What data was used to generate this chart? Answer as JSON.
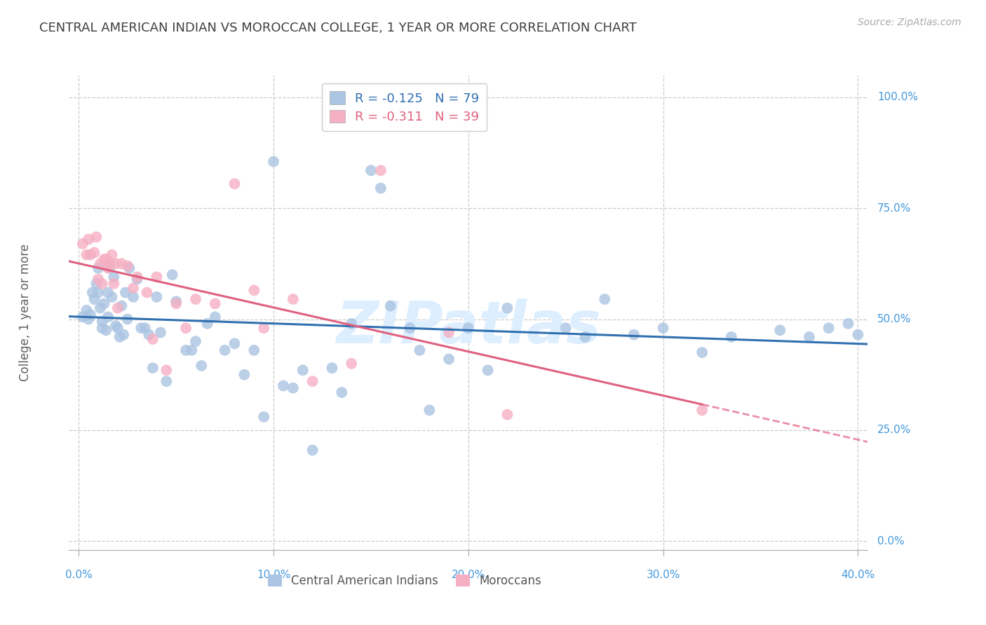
{
  "title": "CENTRAL AMERICAN INDIAN VS MOROCCAN COLLEGE, 1 YEAR OR MORE CORRELATION CHART",
  "source": "Source: ZipAtlas.com",
  "ylabel": "College, 1 year or more",
  "xlabel_ticks": [
    "0.0%",
    "10.0%",
    "20.0%",
    "30.0%",
    "40.0%"
  ],
  "xlabel_vals": [
    0.0,
    0.1,
    0.2,
    0.3,
    0.4
  ],
  "ylabel_ticks": [
    "0.0%",
    "25.0%",
    "50.0%",
    "75.0%",
    "100.0%"
  ],
  "ylabel_vals": [
    0.0,
    0.25,
    0.5,
    0.75,
    1.0
  ],
  "xlim": [
    -0.005,
    0.405
  ],
  "ylim": [
    -0.02,
    1.05
  ],
  "blue_R": -0.125,
  "blue_N": 79,
  "pink_R": -0.311,
  "pink_N": 39,
  "blue_color": "#aac4e2",
  "pink_color": "#f5afc3",
  "blue_line_color": "#3070b0",
  "pink_line_color": "#e06080",
  "background_color": "#ffffff",
  "grid_color": "#cccccc",
  "tick_color": "#4499dd",
  "title_color": "#404040",
  "ylabel_color": "#606060",
  "watermark": "ZIPatlas",
  "watermark_color": "#ddeeff",
  "blue_scatter_x": [
    0.002,
    0.004,
    0.005,
    0.006,
    0.007,
    0.008,
    0.009,
    0.01,
    0.01,
    0.011,
    0.012,
    0.012,
    0.013,
    0.014,
    0.015,
    0.015,
    0.016,
    0.017,
    0.018,
    0.019,
    0.02,
    0.021,
    0.022,
    0.023,
    0.024,
    0.025,
    0.026,
    0.028,
    0.03,
    0.032,
    0.034,
    0.036,
    0.038,
    0.04,
    0.042,
    0.045,
    0.048,
    0.05,
    0.055,
    0.058,
    0.06,
    0.063,
    0.066,
    0.07,
    0.075,
    0.08,
    0.085,
    0.09,
    0.095,
    0.1,
    0.105,
    0.11,
    0.115,
    0.12,
    0.13,
    0.135,
    0.14,
    0.15,
    0.155,
    0.16,
    0.17,
    0.175,
    0.18,
    0.19,
    0.2,
    0.21,
    0.22,
    0.25,
    0.26,
    0.27,
    0.285,
    0.3,
    0.32,
    0.335,
    0.36,
    0.375,
    0.385,
    0.395,
    0.4
  ],
  "blue_scatter_y": [
    0.505,
    0.52,
    0.5,
    0.51,
    0.56,
    0.545,
    0.58,
    0.56,
    0.615,
    0.525,
    0.495,
    0.48,
    0.535,
    0.475,
    0.56,
    0.505,
    0.615,
    0.55,
    0.595,
    0.485,
    0.48,
    0.46,
    0.53,
    0.465,
    0.56,
    0.5,
    0.615,
    0.55,
    0.59,
    0.48,
    0.48,
    0.465,
    0.39,
    0.55,
    0.47,
    0.36,
    0.6,
    0.54,
    0.43,
    0.43,
    0.45,
    0.395,
    0.49,
    0.505,
    0.43,
    0.445,
    0.375,
    0.43,
    0.28,
    0.855,
    0.35,
    0.345,
    0.385,
    0.205,
    0.39,
    0.335,
    0.49,
    0.835,
    0.795,
    0.53,
    0.48,
    0.43,
    0.295,
    0.41,
    0.48,
    0.385,
    0.525,
    0.48,
    0.46,
    0.545,
    0.465,
    0.48,
    0.425,
    0.46,
    0.475,
    0.46,
    0.48,
    0.49,
    0.465
  ],
  "pink_scatter_x": [
    0.002,
    0.004,
    0.005,
    0.006,
    0.008,
    0.009,
    0.01,
    0.011,
    0.012,
    0.013,
    0.014,
    0.015,
    0.016,
    0.017,
    0.018,
    0.019,
    0.02,
    0.022,
    0.025,
    0.028,
    0.03,
    0.035,
    0.038,
    0.04,
    0.045,
    0.05,
    0.055,
    0.06,
    0.07,
    0.08,
    0.09,
    0.095,
    0.11,
    0.12,
    0.14,
    0.155,
    0.19,
    0.22,
    0.32
  ],
  "pink_scatter_y": [
    0.67,
    0.645,
    0.68,
    0.645,
    0.65,
    0.685,
    0.59,
    0.625,
    0.58,
    0.635,
    0.635,
    0.615,
    0.625,
    0.645,
    0.58,
    0.625,
    0.525,
    0.625,
    0.62,
    0.57,
    0.595,
    0.56,
    0.455,
    0.595,
    0.385,
    0.535,
    0.48,
    0.545,
    0.535,
    0.805,
    0.565,
    0.48,
    0.545,
    0.36,
    0.4,
    0.835,
    0.47,
    0.285,
    0.295
  ]
}
